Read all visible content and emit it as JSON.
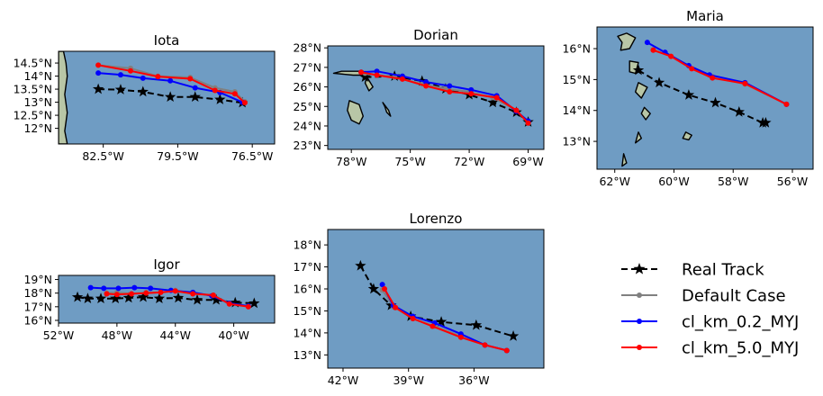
{
  "colors": {
    "real": "#000000",
    "default": "#808080",
    "km02": "#0000ff",
    "km50": "#ff0000",
    "ocean": "#6f9cc3",
    "land": "#b8c6a6"
  },
  "legend": {
    "items": [
      {
        "label": "Real Track",
        "key": "real"
      },
      {
        "label": "Default Case",
        "key": "default"
      },
      {
        "label": "cl_km_0.2_MYJ",
        "key": "km02"
      },
      {
        "label": "cl_km_5.0_MYJ",
        "key": "km50"
      }
    ]
  },
  "chart_data": [
    {
      "type": "line",
      "title": "Iota",
      "xlim": [
        -84.3,
        -75.6
      ],
      "ylim": [
        11.4,
        14.95
      ],
      "xticks": [
        -82.5,
        -79.5,
        -76.5
      ],
      "xtick_labels": [
        "82.5°W",
        "79.5°W",
        "76.5°W"
      ],
      "yticks": [
        12,
        12.5,
        13,
        13.5,
        14,
        14.5
      ],
      "ytick_labels": [
        "12°N",
        "12.5°N",
        "13°N",
        "13.5°N",
        "14°N",
        "14.5°N"
      ],
      "land": [
        {
          "points": [
            [
              -84.3,
              14.95
            ],
            [
              -84.1,
              14.95
            ],
            [
              -84.0,
              14.5
            ],
            [
              -83.95,
              14.0
            ],
            [
              -84.05,
              13.3
            ],
            [
              -83.95,
              12.6
            ],
            [
              -84.05,
              11.9
            ],
            [
              -83.95,
              11.4
            ],
            [
              -84.3,
              11.4
            ]
          ]
        }
      ],
      "series": [
        {
          "name": "Real Track",
          "key": "real",
          "x": [
            -82.7,
            -81.8,
            -80.9,
            -79.8,
            -78.8,
            -77.8,
            -76.9
          ],
          "y": [
            13.5,
            13.48,
            13.4,
            13.2,
            13.2,
            13.1,
            12.98
          ]
        },
        {
          "name": "Default Case",
          "key": "default",
          "x": [
            -82.7,
            -81.4,
            -80.3,
            -79.0,
            -78.0,
            -77.2,
            -76.8
          ],
          "y": [
            14.42,
            14.3,
            14.0,
            13.95,
            13.55,
            13.4,
            13.02
          ]
        },
        {
          "name": "cl_km_0.2_MYJ",
          "key": "km02",
          "x": [
            -82.7,
            -81.8,
            -80.9,
            -79.8,
            -78.8,
            -77.8,
            -76.9
          ],
          "y": [
            14.12,
            14.05,
            13.92,
            13.82,
            13.55,
            13.37,
            13.0
          ]
        },
        {
          "name": "cl_km_5.0_MYJ",
          "key": "km50",
          "x": [
            -82.7,
            -81.4,
            -80.3,
            -79.0,
            -78.0,
            -77.2,
            -76.8
          ],
          "y": [
            14.42,
            14.2,
            13.98,
            13.9,
            13.45,
            13.32,
            12.98
          ]
        }
      ]
    },
    {
      "type": "line",
      "title": "Dorian",
      "xlim": [
        -79.2,
        -68.2
      ],
      "ylim": [
        22.8,
        28.1
      ],
      "xticks": [
        -78,
        -75,
        -72,
        -69
      ],
      "xtick_labels": [
        "78°W",
        "75°W",
        "72°W",
        "69°W"
      ],
      "yticks": [
        23,
        24,
        25,
        26,
        27,
        28
      ],
      "ytick_labels": [
        "23°N",
        "24°N",
        "25°N",
        "26°N",
        "27°N",
        "28°N"
      ],
      "land": [
        {
          "points": [
            [
              -78.1,
              25.3
            ],
            [
              -77.6,
              25.1
            ],
            [
              -77.4,
              24.5
            ],
            [
              -77.6,
              24.1
            ],
            [
              -78.0,
              24.3
            ],
            [
              -78.2,
              24.8
            ]
          ]
        },
        {
          "points": [
            [
              -78.9,
              26.7
            ],
            [
              -77.9,
              26.6
            ],
            [
              -77.2,
              26.6
            ],
            [
              -77.4,
              26.8
            ],
            [
              -78.5,
              26.8
            ]
          ]
        },
        {
          "points": [
            [
              -77.2,
              26.5
            ],
            [
              -76.9,
              26.0
            ],
            [
              -77.1,
              25.8
            ],
            [
              -77.3,
              26.2
            ]
          ]
        },
        {
          "points": [
            [
              -76.4,
              25.2
            ],
            [
              -76.1,
              24.8
            ],
            [
              -76.0,
              24.5
            ],
            [
              -76.2,
              24.7
            ],
            [
              -76.3,
              25.0
            ]
          ]
        }
      ],
      "series": [
        {
          "name": "Real Track",
          "key": "real",
          "x": [
            -77.3,
            -75.8,
            -74.4,
            -73.2,
            -72.0,
            -70.8,
            -69.6,
            -69.0
          ],
          "y": [
            26.5,
            26.55,
            26.3,
            25.9,
            25.6,
            25.2,
            24.7,
            24.2
          ]
        },
        {
          "name": "Default Case",
          "key": "default",
          "x": [
            -77.3,
            -75.8,
            -74.4,
            -73.2,
            -72.0,
            -70.8,
            -69.6,
            -69.0
          ],
          "y": [
            26.7,
            26.5,
            26.15,
            25.9,
            25.75,
            25.45,
            24.8,
            24.15
          ]
        },
        {
          "name": "cl_km_0.2_MYJ",
          "key": "km02",
          "x": [
            -77.5,
            -76.7,
            -75.4,
            -74.2,
            -73.0,
            -71.9,
            -70.6,
            -69.6,
            -69.0
          ],
          "y": [
            26.75,
            26.8,
            26.55,
            26.25,
            26.05,
            25.85,
            25.55,
            24.75,
            24.25
          ]
        },
        {
          "name": "cl_km_5.0_MYJ",
          "key": "km50",
          "x": [
            -77.5,
            -76.7,
            -75.4,
            -74.2,
            -73.0,
            -71.9,
            -70.6,
            -69.6,
            -69.0
          ],
          "y": [
            26.75,
            26.6,
            26.4,
            26.05,
            25.75,
            25.65,
            25.45,
            24.8,
            24.15
          ]
        }
      ]
    },
    {
      "type": "line",
      "title": "Maria",
      "xlim": [
        -62.6,
        -55.3
      ],
      "ylim": [
        12.1,
        16.7
      ],
      "xticks": [
        -62,
        -60,
        -58,
        -56
      ],
      "xtick_labels": [
        "62°W",
        "60°W",
        "58°W",
        "56°W"
      ],
      "yticks": [
        13,
        14,
        15,
        16
      ],
      "ytick_labels": [
        "13°N",
        "14°N",
        "15°N",
        "16°N"
      ],
      "land": [
        {
          "points": [
            [
              -61.9,
              16.4
            ],
            [
              -61.6,
              16.5
            ],
            [
              -61.3,
              16.35
            ],
            [
              -61.5,
              16.0
            ],
            [
              -61.8,
              15.95
            ],
            [
              -61.75,
              16.2
            ]
          ]
        },
        {
          "points": [
            [
              -61.5,
              15.6
            ],
            [
              -61.2,
              15.55
            ],
            [
              -61.3,
              15.2
            ],
            [
              -61.5,
              15.25
            ]
          ]
        },
        {
          "points": [
            [
              -61.2,
              14.9
            ],
            [
              -60.9,
              14.75
            ],
            [
              -61.1,
              14.4
            ],
            [
              -61.3,
              14.6
            ]
          ]
        },
        {
          "points": [
            [
              -61.0,
              14.1
            ],
            [
              -60.8,
              13.9
            ],
            [
              -60.95,
              13.7
            ],
            [
              -61.1,
              13.9
            ]
          ]
        },
        {
          "points": [
            [
              -59.6,
              13.3
            ],
            [
              -59.4,
              13.2
            ],
            [
              -59.5,
              13.05
            ],
            [
              -59.7,
              13.1
            ]
          ]
        },
        {
          "points": [
            [
              -61.2,
              13.3
            ],
            [
              -61.1,
              13.1
            ],
            [
              -61.3,
              12.95
            ]
          ]
        },
        {
          "points": [
            [
              -61.7,
              12.6
            ],
            [
              -61.6,
              12.3
            ],
            [
              -61.75,
              12.2
            ]
          ]
        }
      ],
      "series": [
        {
          "name": "Real Track",
          "key": "real",
          "x": [
            -61.2,
            -60.5,
            -59.5,
            -58.6,
            -57.8,
            -57.0,
            -56.9
          ],
          "y": [
            15.3,
            14.9,
            14.5,
            14.25,
            13.95,
            13.6,
            13.6
          ]
        },
        {
          "name": "Default Case",
          "key": "default",
          "x": [
            -60.7,
            -60.1,
            -59.5,
            -58.7,
            -57.6,
            -56.2
          ],
          "y": [
            15.97,
            15.75,
            15.45,
            15.1,
            14.85,
            14.2
          ]
        },
        {
          "name": "cl_km_0.2_MYJ",
          "key": "km02",
          "x": [
            -60.9,
            -60.3,
            -59.5,
            -58.8,
            -57.6,
            -56.2
          ],
          "y": [
            16.2,
            15.88,
            15.45,
            15.15,
            14.9,
            14.2
          ]
        },
        {
          "name": "cl_km_5.0_MYJ",
          "key": "km50",
          "x": [
            -60.7,
            -60.1,
            -59.4,
            -58.7,
            -57.6,
            -56.2
          ],
          "y": [
            15.95,
            15.75,
            15.35,
            15.05,
            14.87,
            14.2
          ]
        }
      ]
    },
    {
      "type": "line",
      "title": "Igor",
      "xlim": [
        -52,
        -37.2
      ],
      "ylim": [
        15.8,
        19.3
      ],
      "xticks": [
        -52,
        -48,
        -44,
        -40
      ],
      "xtick_labels": [
        "52°W",
        "48°W",
        "44°W",
        "40°W"
      ],
      "yticks": [
        16,
        17,
        18,
        19
      ],
      "ytick_labels": [
        "16°N",
        "17°N",
        "18°N",
        "19°N"
      ],
      "land": [],
      "series": [
        {
          "name": "Real Track",
          "key": "real",
          "x": [
            -50.7,
            -50.0,
            -49.1,
            -48.1,
            -47.2,
            -46.2,
            -45.1,
            -43.8,
            -42.5,
            -41.2,
            -39.9,
            -38.6
          ],
          "y": [
            17.7,
            17.6,
            17.6,
            17.6,
            17.65,
            17.7,
            17.6,
            17.65,
            17.5,
            17.5,
            17.3,
            17.25
          ]
        },
        {
          "name": "Default Case",
          "key": "default",
          "x": [
            -48.7,
            -48.0,
            -47.0,
            -46.0,
            -45.0,
            -44.0,
            -42.8,
            -41.4,
            -40.3,
            -39.0
          ],
          "y": [
            18.0,
            18.05,
            17.95,
            18.05,
            18.05,
            18.2,
            18.0,
            17.85,
            17.25,
            17.05
          ]
        },
        {
          "name": "cl_km_0.2_MYJ",
          "key": "km02",
          "x": [
            -49.8,
            -48.9,
            -47.9,
            -46.8,
            -45.7,
            -44.3,
            -42.8,
            -41.5,
            -40.3,
            -39.0
          ],
          "y": [
            18.4,
            18.35,
            18.35,
            18.4,
            18.35,
            18.2,
            18.05,
            17.8,
            17.25,
            17.05
          ]
        },
        {
          "name": "cl_km_5.0_MYJ",
          "key": "km50",
          "x": [
            -48.7,
            -48.0,
            -47.0,
            -46.0,
            -45.0,
            -44.0,
            -42.8,
            -41.4,
            -40.3,
            -39.0
          ],
          "y": [
            17.95,
            17.9,
            17.95,
            18.0,
            18.05,
            18.15,
            17.95,
            17.85,
            17.2,
            17.0
          ]
        }
      ]
    },
    {
      "type": "line",
      "title": "Lorenzo",
      "xlim": [
        -42.7,
        -32.8
      ],
      "ylim": [
        12.4,
        18.7
      ],
      "xticks": [
        -42,
        -39,
        -36
      ],
      "xtick_labels": [
        "42°W",
        "39°W",
        "36°W"
      ],
      "yticks": [
        13,
        14,
        15,
        16,
        17,
        18
      ],
      "ytick_labels": [
        "13°N",
        "14°N",
        "15°N",
        "16°N",
        "17°N",
        "18°N"
      ],
      "land": [],
      "series": [
        {
          "name": "Real Track",
          "key": "real",
          "x": [
            -41.2,
            -40.6,
            -39.8,
            -38.9,
            -37.5,
            -35.9,
            -34.2
          ],
          "y": [
            17.05,
            16.0,
            15.25,
            14.75,
            14.5,
            14.35,
            13.85
          ]
        },
        {
          "name": "Default Case",
          "key": "default",
          "x": [
            -40.2,
            -39.7,
            -38.8,
            -37.8,
            -36.6,
            -35.5,
            -34.5
          ],
          "y": [
            15.95,
            15.2,
            14.65,
            14.3,
            13.85,
            13.45,
            13.2
          ]
        },
        {
          "name": "cl_km_0.2_MYJ",
          "key": "km02",
          "x": [
            -40.2,
            -39.7,
            -38.8,
            -37.8,
            -36.6,
            -35.5,
            -34.5
          ],
          "y": [
            16.2,
            15.25,
            14.75,
            14.45,
            13.95,
            13.45,
            13.2
          ]
        },
        {
          "name": "cl_km_5.0_MYJ",
          "key": "km50",
          "x": [
            -40.1,
            -39.6,
            -38.8,
            -37.9,
            -36.6,
            -35.5,
            -34.5
          ],
          "y": [
            16.0,
            15.15,
            14.65,
            14.3,
            13.8,
            13.45,
            13.2
          ]
        }
      ]
    }
  ]
}
